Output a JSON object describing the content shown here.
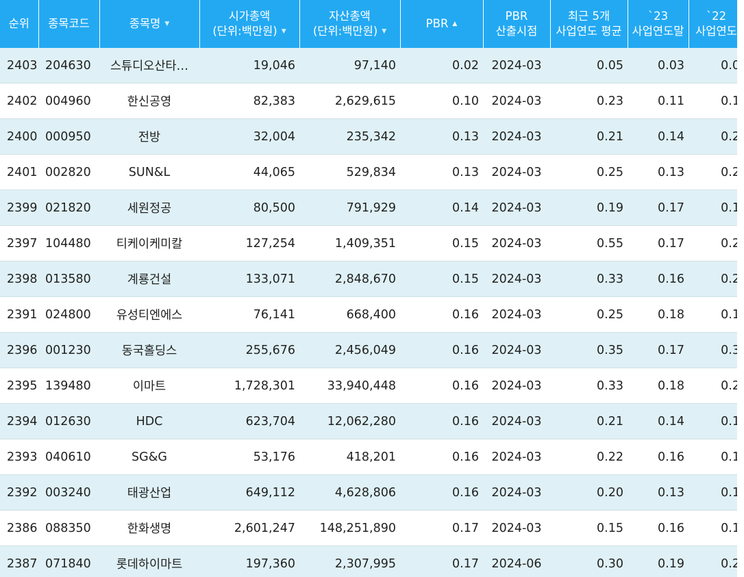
{
  "columns": [
    {
      "lines": [
        "순위"
      ],
      "sort": null
    },
    {
      "lines": [
        "종목코드"
      ],
      "sort": null
    },
    {
      "lines": [
        "종목명"
      ],
      "sort": "down"
    },
    {
      "lines": [
        "시가총액",
        "(단위:백만원)"
      ],
      "sort": "down"
    },
    {
      "lines": [
        "자산총액",
        "(단위:백만원)"
      ],
      "sort": "down"
    },
    {
      "lines": [
        "PBR"
      ],
      "sort": "up-active"
    },
    {
      "lines": [
        "PBR",
        "산출시점"
      ],
      "sort": null
    },
    {
      "lines": [
        "최근 5개",
        "사업연도 평균"
      ],
      "sort": null
    },
    {
      "lines": [
        "`23",
        "사업연도말"
      ],
      "sort": null
    },
    {
      "lines": [
        "`22",
        "사업연도"
      ],
      "sort": null
    }
  ],
  "rows": [
    {
      "rank": "2403",
      "code": "204630",
      "name": "스튜디오산타…",
      "mcap": "19,046",
      "assets": "97,140",
      "pbr": "0.02",
      "date": "2024-03",
      "avg5": "0.05",
      "y23": "0.03",
      "y22": "0.0"
    },
    {
      "rank": "2402",
      "code": "004960",
      "name": "한신공영",
      "mcap": "82,383",
      "assets": "2,629,615",
      "pbr": "0.10",
      "date": "2024-03",
      "avg5": "0.23",
      "y23": "0.11",
      "y22": "0.1"
    },
    {
      "rank": "2400",
      "code": "000950",
      "name": "전방",
      "mcap": "32,004",
      "assets": "235,342",
      "pbr": "0.13",
      "date": "2024-03",
      "avg5": "0.21",
      "y23": "0.14",
      "y22": "0.2"
    },
    {
      "rank": "2401",
      "code": "002820",
      "name": "SUN&L",
      "mcap": "44,065",
      "assets": "529,834",
      "pbr": "0.13",
      "date": "2024-03",
      "avg5": "0.25",
      "y23": "0.13",
      "y22": "0.2"
    },
    {
      "rank": "2399",
      "code": "021820",
      "name": "세원정공",
      "mcap": "80,500",
      "assets": "791,929",
      "pbr": "0.14",
      "date": "2024-03",
      "avg5": "0.19",
      "y23": "0.17",
      "y22": "0.1"
    },
    {
      "rank": "2397",
      "code": "104480",
      "name": "티케이케미칼",
      "mcap": "127,254",
      "assets": "1,409,351",
      "pbr": "0.15",
      "date": "2024-03",
      "avg5": "0.55",
      "y23": "0.17",
      "y22": "0.2"
    },
    {
      "rank": "2398",
      "code": "013580",
      "name": "계룡건설",
      "mcap": "133,071",
      "assets": "2,848,670",
      "pbr": "0.15",
      "date": "2024-03",
      "avg5": "0.33",
      "y23": "0.16",
      "y22": "0.2"
    },
    {
      "rank": "2391",
      "code": "024800",
      "name": "유성티엔에스",
      "mcap": "76,141",
      "assets": "668,400",
      "pbr": "0.16",
      "date": "2024-03",
      "avg5": "0.25",
      "y23": "0.18",
      "y22": "0.1"
    },
    {
      "rank": "2396",
      "code": "001230",
      "name": "동국홀딩스",
      "mcap": "255,676",
      "assets": "2,456,049",
      "pbr": "0.16",
      "date": "2024-03",
      "avg5": "0.35",
      "y23": "0.17",
      "y22": "0.3"
    },
    {
      "rank": "2395",
      "code": "139480",
      "name": "이마트",
      "mcap": "1,728,301",
      "assets": "33,940,448",
      "pbr": "0.16",
      "date": "2024-03",
      "avg5": "0.33",
      "y23": "0.18",
      "y22": "0.2"
    },
    {
      "rank": "2394",
      "code": "012630",
      "name": "HDC",
      "mcap": "623,704",
      "assets": "12,062,280",
      "pbr": "0.16",
      "date": "2024-03",
      "avg5": "0.21",
      "y23": "0.14",
      "y22": "0.1"
    },
    {
      "rank": "2393",
      "code": "040610",
      "name": "SG&G",
      "mcap": "53,176",
      "assets": "418,201",
      "pbr": "0.16",
      "date": "2024-03",
      "avg5": "0.22",
      "y23": "0.16",
      "y22": "0.1"
    },
    {
      "rank": "2392",
      "code": "003240",
      "name": "태광산업",
      "mcap": "649,112",
      "assets": "4,628,806",
      "pbr": "0.16",
      "date": "2024-03",
      "avg5": "0.20",
      "y23": "0.13",
      "y22": "0.1"
    },
    {
      "rank": "2386",
      "code": "088350",
      "name": "한화생명",
      "mcap": "2,601,247",
      "assets": "148,251,890",
      "pbr": "0.17",
      "date": "2024-03",
      "avg5": "0.15",
      "y23": "0.16",
      "y22": "0.1"
    },
    {
      "rank": "2387",
      "code": "071840",
      "name": "롯데하이마트",
      "mcap": "197,360",
      "assets": "2,307,995",
      "pbr": "0.17",
      "date": "2024-06",
      "avg5": "0.30",
      "y23": "0.19",
      "y22": "0.2"
    }
  ],
  "colors": {
    "header_bg": "#23a9f2",
    "row_odd": "#dff1f6",
    "row_even": "#ffffff",
    "text": "#222222"
  }
}
